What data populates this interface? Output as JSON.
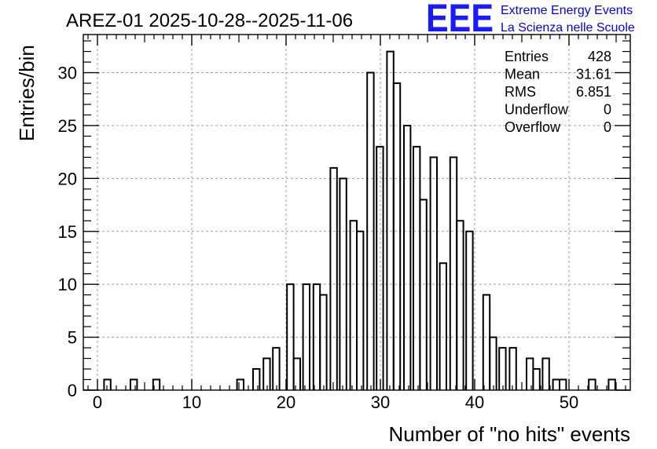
{
  "chart_data": {
    "type": "bar",
    "title": "AREZ-01 2025-10-28--2025-11-06",
    "xlabel": "Number of \"no hits\" events",
    "ylabel": "Entries/bin",
    "xlim": [
      -1.5,
      56.5
    ],
    "ylim": [
      0,
      33.6
    ],
    "bin_width": 0.7,
    "xticks": [
      0,
      10,
      20,
      30,
      40,
      50
    ],
    "yticks": [
      0,
      5,
      10,
      15,
      20,
      25,
      30
    ],
    "grid": true,
    "bins": [
      {
        "x0": 0.7,
        "value": 1
      },
      {
        "x0": 3.5,
        "value": 1
      },
      {
        "x0": 5.9,
        "value": 1
      },
      {
        "x0": 14.8,
        "value": 1
      },
      {
        "x0": 16.5,
        "value": 2
      },
      {
        "x0": 17.6,
        "value": 3
      },
      {
        "x0": 18.6,
        "value": 4
      },
      {
        "x0": 20.1,
        "value": 10
      },
      {
        "x0": 20.8,
        "value": 3
      },
      {
        "x0": 21.8,
        "value": 10
      },
      {
        "x0": 22.9,
        "value": 10
      },
      {
        "x0": 23.6,
        "value": 9
      },
      {
        "x0": 24.7,
        "value": 21
      },
      {
        "x0": 25.7,
        "value": 20
      },
      {
        "x0": 26.8,
        "value": 16
      },
      {
        "x0": 27.5,
        "value": 15
      },
      {
        "x0": 28.6,
        "value": 30
      },
      {
        "x0": 29.6,
        "value": 23
      },
      {
        "x0": 30.7,
        "value": 32
      },
      {
        "x0": 31.4,
        "value": 29
      },
      {
        "x0": 32.5,
        "value": 25
      },
      {
        "x0": 33.5,
        "value": 23
      },
      {
        "x0": 34.2,
        "value": 18
      },
      {
        "x0": 35.3,
        "value": 22
      },
      {
        "x0": 36.3,
        "value": 12
      },
      {
        "x0": 37.4,
        "value": 22
      },
      {
        "x0": 38.1,
        "value": 16
      },
      {
        "x0": 39.1,
        "value": 15
      },
      {
        "x0": 40.9,
        "value": 9
      },
      {
        "x0": 41.6,
        "value": 5
      },
      {
        "x0": 42.6,
        "value": 4
      },
      {
        "x0": 43.7,
        "value": 4
      },
      {
        "x0": 45.5,
        "value": 3
      },
      {
        "x0": 46.2,
        "value": 2
      },
      {
        "x0": 47.2,
        "value": 3
      },
      {
        "x0": 48.3,
        "value": 1
      },
      {
        "x0": 49.0,
        "value": 1
      },
      {
        "x0": 52.1,
        "value": 1
      },
      {
        "x0": 54.2,
        "value": 1
      }
    ],
    "stats": [
      {
        "label": "Entries",
        "value": "428"
      },
      {
        "label": "Mean",
        "value": "31.61"
      },
      {
        "label": "RMS",
        "value": "6.851"
      },
      {
        "label": "Underflow",
        "value": "0"
      },
      {
        "label": "Overflow",
        "value": "0"
      }
    ]
  },
  "logo": {
    "mark": "EEE",
    "line1": "Extreme Energy Events",
    "line2": "La Scienza nelle Scuole",
    "color": "#1a1aff"
  }
}
